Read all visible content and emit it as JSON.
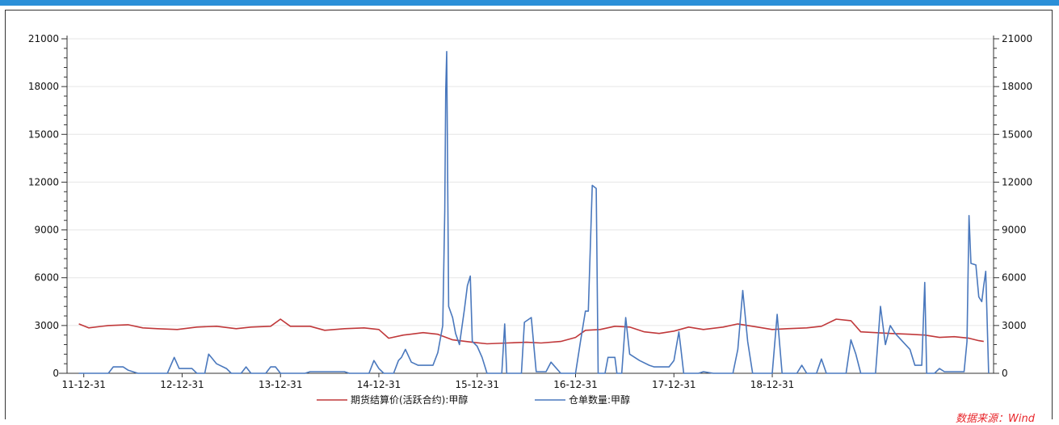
{
  "chart_data": {
    "type": "line",
    "x_tick_labels": [
      "11-12-31",
      "12-12-31",
      "13-12-31",
      "14-12-31",
      "15-12-31",
      "16-12-31",
      "17-12-31",
      "18-12-31"
    ],
    "y_ticks_left": [
      0,
      3000,
      6000,
      9000,
      12000,
      15000,
      18000,
      21000
    ],
    "y_ticks_right": [
      0,
      3000,
      6000,
      9000,
      12000,
      15000,
      18000,
      21000
    ],
    "ylim": [
      0,
      21000
    ],
    "grid": "horizontal",
    "legend_position": "bottom",
    "series": [
      {
        "name": "期货结算价(活跃合约):甲醇",
        "color": "#c0383a",
        "axis": "left",
        "points": [
          [
            2011.9,
            3100
          ],
          [
            2012.0,
            2850
          ],
          [
            2012.2,
            3000
          ],
          [
            2012.4,
            3050
          ],
          [
            2012.55,
            2850
          ],
          [
            2012.7,
            2800
          ],
          [
            2012.9,
            2750
          ],
          [
            2013.1,
            2900
          ],
          [
            2013.3,
            2950
          ],
          [
            2013.5,
            2800
          ],
          [
            2013.65,
            2900
          ],
          [
            2013.85,
            2950
          ],
          [
            2013.95,
            3400
          ],
          [
            2014.05,
            2950
          ],
          [
            2014.25,
            2950
          ],
          [
            2014.4,
            2700
          ],
          [
            2014.6,
            2800
          ],
          [
            2014.8,
            2850
          ],
          [
            2014.95,
            2750
          ],
          [
            2015.05,
            2200
          ],
          [
            2015.2,
            2400
          ],
          [
            2015.4,
            2550
          ],
          [
            2015.55,
            2450
          ],
          [
            2015.7,
            2100
          ],
          [
            2015.9,
            1950
          ],
          [
            2016.05,
            1850
          ],
          [
            2016.25,
            1900
          ],
          [
            2016.45,
            1950
          ],
          [
            2016.6,
            1900
          ],
          [
            2016.8,
            2000
          ],
          [
            2016.95,
            2250
          ],
          [
            2017.05,
            2700
          ],
          [
            2017.2,
            2750
          ],
          [
            2017.35,
            2950
          ],
          [
            2017.5,
            2900
          ],
          [
            2017.65,
            2600
          ],
          [
            2017.8,
            2500
          ],
          [
            2017.95,
            2650
          ],
          [
            2018.1,
            2900
          ],
          [
            2018.25,
            2750
          ],
          [
            2018.45,
            2900
          ],
          [
            2018.6,
            3100
          ],
          [
            2018.8,
            2900
          ],
          [
            2018.95,
            2750
          ],
          [
            2019.1,
            2800
          ],
          [
            2019.3,
            2850
          ],
          [
            2019.45,
            2950
          ],
          [
            2019.6,
            3400
          ],
          [
            2019.75,
            3300
          ],
          [
            2019.85,
            2600
          ],
          [
            2020.0,
            2550
          ],
          [
            2020.15,
            2500
          ],
          [
            2020.35,
            2450
          ],
          [
            2020.5,
            2400
          ],
          [
            2020.65,
            2250
          ],
          [
            2020.8,
            2300
          ],
          [
            2020.95,
            2200
          ],
          [
            2021.05,
            2050
          ],
          [
            2021.1,
            2000
          ]
        ]
      },
      {
        "name": "仓单数量:甲醇",
        "color": "#4a78bd",
        "axis": "left",
        "points": [
          [
            2011.9,
            0
          ],
          [
            2012.2,
            0
          ],
          [
            2012.25,
            400
          ],
          [
            2012.35,
            400
          ],
          [
            2012.4,
            200
          ],
          [
            2012.5,
            0
          ],
          [
            2012.8,
            0
          ],
          [
            2012.87,
            1000
          ],
          [
            2012.92,
            300
          ],
          [
            2013.05,
            300
          ],
          [
            2013.1,
            0
          ],
          [
            2013.18,
            0
          ],
          [
            2013.22,
            1200
          ],
          [
            2013.3,
            600
          ],
          [
            2013.4,
            300
          ],
          [
            2013.45,
            0
          ],
          [
            2013.55,
            0
          ],
          [
            2013.6,
            400
          ],
          [
            2013.65,
            0
          ],
          [
            2013.8,
            0
          ],
          [
            2013.85,
            400
          ],
          [
            2013.9,
            400
          ],
          [
            2013.95,
            0
          ],
          [
            2014.2,
            0
          ],
          [
            2014.25,
            100
          ],
          [
            2014.6,
            100
          ],
          [
            2014.65,
            0
          ],
          [
            2014.85,
            0
          ],
          [
            2014.9,
            800
          ],
          [
            2014.95,
            300
          ],
          [
            2015.0,
            0
          ],
          [
            2015.1,
            0
          ],
          [
            2015.15,
            800
          ],
          [
            2015.18,
            1000
          ],
          [
            2015.22,
            1500
          ],
          [
            2015.28,
            700
          ],
          [
            2015.35,
            500
          ],
          [
            2015.5,
            500
          ],
          [
            2015.55,
            1300
          ],
          [
            2015.6,
            3000
          ],
          [
            2015.62,
            10200
          ],
          [
            2015.63,
            17800
          ],
          [
            2015.64,
            20200
          ],
          [
            2015.66,
            4200
          ],
          [
            2015.7,
            3500
          ],
          [
            2015.73,
            2500
          ],
          [
            2015.77,
            1800
          ],
          [
            2015.82,
            4000
          ],
          [
            2015.85,
            5500
          ],
          [
            2015.88,
            6100
          ],
          [
            2015.9,
            2000
          ],
          [
            2015.95,
            1700
          ],
          [
            2016.0,
            1000
          ],
          [
            2016.05,
            0
          ],
          [
            2016.2,
            0
          ],
          [
            2016.23,
            3100
          ],
          [
            2016.25,
            0
          ],
          [
            2016.4,
            0
          ],
          [
            2016.43,
            3200
          ],
          [
            2016.5,
            3500
          ],
          [
            2016.55,
            100
          ],
          [
            2016.65,
            100
          ],
          [
            2016.7,
            700
          ],
          [
            2016.8,
            0
          ],
          [
            2016.95,
            0
          ],
          [
            2017.0,
            2000
          ],
          [
            2017.05,
            3900
          ],
          [
            2017.08,
            3900
          ],
          [
            2017.12,
            11800
          ],
          [
            2017.16,
            11600
          ],
          [
            2017.18,
            0
          ],
          [
            2017.25,
            0
          ],
          [
            2017.28,
            1000
          ],
          [
            2017.35,
            1000
          ],
          [
            2017.37,
            0
          ],
          [
            2017.42,
            0
          ],
          [
            2017.46,
            3500
          ],
          [
            2017.5,
            1200
          ],
          [
            2017.6,
            800
          ],
          [
            2017.7,
            500
          ],
          [
            2017.75,
            400
          ],
          [
            2017.9,
            400
          ],
          [
            2017.95,
            800
          ],
          [
            2018.0,
            2600
          ],
          [
            2018.02,
            1600
          ],
          [
            2018.05,
            0
          ],
          [
            2018.2,
            0
          ],
          [
            2018.25,
            100
          ],
          [
            2018.35,
            0
          ],
          [
            2018.55,
            0
          ],
          [
            2018.6,
            1500
          ],
          [
            2018.65,
            5200
          ],
          [
            2018.7,
            2000
          ],
          [
            2018.75,
            0
          ],
          [
            2018.95,
            0
          ],
          [
            2019.0,
            3700
          ],
          [
            2019.05,
            0
          ],
          [
            2019.2,
            0
          ],
          [
            2019.25,
            500
          ],
          [
            2019.3,
            0
          ],
          [
            2019.4,
            0
          ],
          [
            2019.45,
            900
          ],
          [
            2019.5,
            0
          ],
          [
            2019.7,
            0
          ],
          [
            2019.75,
            2100
          ],
          [
            2019.8,
            1200
          ],
          [
            2019.85,
            0
          ],
          [
            2020.0,
            0
          ],
          [
            2020.05,
            4200
          ],
          [
            2020.1,
            1800
          ],
          [
            2020.15,
            3000
          ],
          [
            2020.2,
            2500
          ],
          [
            2020.35,
            1500
          ],
          [
            2020.4,
            500
          ],
          [
            2020.47,
            500
          ],
          [
            2020.5,
            5700
          ],
          [
            2020.52,
            0
          ],
          [
            2020.6,
            0
          ],
          [
            2020.65,
            300
          ],
          [
            2020.7,
            100
          ],
          [
            2020.8,
            100
          ],
          [
            2020.85,
            100
          ],
          [
            2020.9,
            100
          ],
          [
            2020.93,
            2000
          ],
          [
            2020.95,
            9900
          ],
          [
            2020.97,
            6900
          ],
          [
            2021.02,
            6800
          ],
          [
            2021.05,
            4800
          ],
          [
            2021.08,
            4500
          ],
          [
            2021.1,
            5500
          ],
          [
            2021.12,
            6400
          ],
          [
            2021.15,
            0
          ]
        ]
      }
    ]
  },
  "source_note": "数据来源：Wind",
  "colors": {
    "top_bar": "#2a8fd8",
    "grid": "#e6e6e6",
    "source_note": "#e8262b"
  }
}
